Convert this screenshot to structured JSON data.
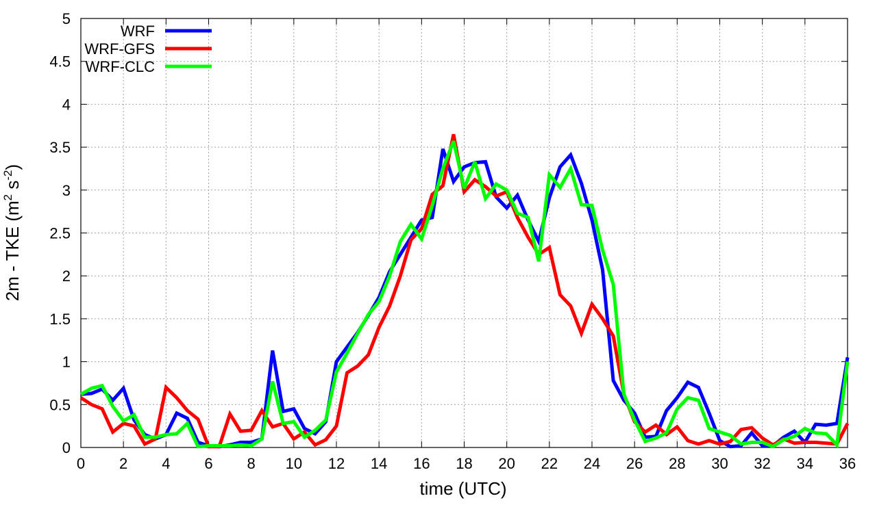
{
  "chart_data": {
    "type": "line",
    "title": "",
    "xlabel": "time (UTC)",
    "ylabel_parts": [
      "2m - TKE (m",
      "2",
      " s",
      "-2",
      ")"
    ],
    "xlim": [
      0,
      36
    ],
    "ylim": [
      0,
      5
    ],
    "xticks": [
      0,
      2,
      4,
      6,
      8,
      10,
      12,
      14,
      16,
      18,
      20,
      22,
      24,
      26,
      28,
      30,
      32,
      34,
      36
    ],
    "yticks": [
      0,
      0.5,
      1,
      1.5,
      2,
      2.5,
      3,
      3.5,
      4,
      4.5,
      5
    ],
    "ytick_labels": [
      "0",
      "0.5",
      "1",
      "1.5",
      "2",
      "2.5",
      "3",
      "3.5",
      "4",
      "4.5",
      "5"
    ],
    "grid": true,
    "legend_position": "top-left",
    "x": [
      0,
      0.5,
      1,
      1.5,
      2,
      2.5,
      3,
      3.5,
      4,
      4.5,
      5,
      5.5,
      6,
      6.5,
      7,
      7.5,
      8,
      8.5,
      9,
      9.5,
      10,
      10.5,
      11,
      11.5,
      12,
      12.5,
      13,
      13.5,
      14,
      14.5,
      15,
      15.5,
      16,
      16.5,
      17,
      17.5,
      18,
      18.5,
      19,
      19.5,
      20,
      20.5,
      21,
      21.5,
      22,
      22.5,
      23,
      23.5,
      24,
      24.5,
      25,
      25.5,
      26,
      26.5,
      27,
      27.5,
      28,
      28.5,
      29,
      29.5,
      30,
      30.5,
      31,
      31.5,
      32,
      32.5,
      33,
      33.5,
      34,
      34.5,
      35,
      35.5,
      36
    ],
    "series": [
      {
        "name": "WRF",
        "color": "#0000ff",
        "values": [
          0.62,
          0.63,
          0.68,
          0.55,
          0.69,
          0.32,
          0.15,
          0.1,
          0.15,
          0.4,
          0.34,
          0.06,
          0.02,
          0.01,
          0.03,
          0.06,
          0.06,
          0.1,
          1.13,
          0.42,
          0.45,
          0.22,
          0.16,
          0.3,
          1.0,
          1.17,
          1.34,
          1.54,
          1.75,
          2.05,
          2.25,
          2.45,
          2.65,
          2.68,
          3.48,
          3.1,
          3.27,
          3.32,
          3.33,
          2.92,
          2.79,
          2.94,
          2.65,
          2.4,
          2.91,
          3.27,
          3.41,
          3.08,
          2.65,
          2.07,
          0.78,
          0.55,
          0.4,
          0.12,
          0.13,
          0.43,
          0.58,
          0.76,
          0.7,
          0.4,
          0.08,
          0.01,
          0.02,
          0.17,
          0.02,
          0.02,
          0.12,
          0.19,
          0.06,
          0.27,
          0.26,
          0.28,
          1.05
        ]
      },
      {
        "name": "WRF-GFS",
        "color": "#ff0000",
        "values": [
          0.58,
          0.5,
          0.45,
          0.18,
          0.28,
          0.25,
          0.04,
          0.1,
          0.7,
          0.58,
          0.43,
          0.33,
          0.01,
          0.01,
          0.39,
          0.19,
          0.2,
          0.43,
          0.24,
          0.28,
          0.1,
          0.18,
          0.03,
          0.09,
          0.25,
          0.87,
          0.95,
          1.08,
          1.4,
          1.65,
          2.0,
          2.42,
          2.55,
          2.95,
          3.05,
          3.65,
          2.98,
          3.12,
          3.04,
          2.93,
          2.98,
          2.68,
          2.45,
          2.25,
          2.33,
          1.78,
          1.65,
          1.33,
          1.67,
          1.5,
          1.3,
          0.62,
          0.3,
          0.18,
          0.26,
          0.15,
          0.24,
          0.08,
          0.04,
          0.08,
          0.04,
          0.07,
          0.21,
          0.23,
          0.11,
          0.03,
          0.1,
          0.05,
          0.06,
          0.06,
          0.05,
          0.04,
          0.28
        ]
      },
      {
        "name": "WRF-CLC",
        "color": "#00ff00",
        "values": [
          0.62,
          0.69,
          0.72,
          0.48,
          0.31,
          0.38,
          0.12,
          0.12,
          0.15,
          0.16,
          0.28,
          0.01,
          0.02,
          0.02,
          0.02,
          0.03,
          0.02,
          0.1,
          0.77,
          0.28,
          0.3,
          0.12,
          0.2,
          0.32,
          0.88,
          1.1,
          1.33,
          1.55,
          1.7,
          2.0,
          2.4,
          2.6,
          2.43,
          2.82,
          3.25,
          3.57,
          3.02,
          3.33,
          2.9,
          3.07,
          3.0,
          2.73,
          2.68,
          2.17,
          3.18,
          3.03,
          3.25,
          2.83,
          2.82,
          2.3,
          1.9,
          0.62,
          0.32,
          0.07,
          0.11,
          0.17,
          0.45,
          0.58,
          0.55,
          0.22,
          0.18,
          0.14,
          0.04,
          0.06,
          0.06,
          0.01,
          0.09,
          0.13,
          0.22,
          0.17,
          0.16,
          0.03,
          1.0
        ]
      }
    ]
  }
}
